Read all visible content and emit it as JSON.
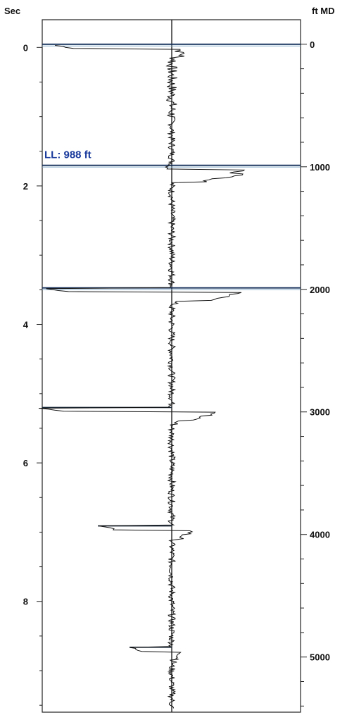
{
  "chart_data": {
    "type": "line",
    "left_axis": {
      "title": "Sec",
      "range": [
        -0.4,
        9.6
      ],
      "ticks": [
        0,
        2,
        4,
        6,
        8
      ],
      "minor_step": 0.5
    },
    "right_axis": {
      "title": "ft MD",
      "range": [
        -200,
        5450
      ],
      "ticks": [
        0,
        1000,
        2000,
        3000,
        4000,
        5000
      ],
      "minor_step": 200
    },
    "event_lines_ft": [
      0,
      988,
      1988,
      2964,
      3930,
      4920
    ],
    "annotation": {
      "text": "LL: 988 ft",
      "depth_ft": 988
    },
    "trace": {
      "center_ft": 0,
      "events": [
        {
          "ft": 0,
          "amplitudes": [
            -180,
            20,
            30,
            10
          ]
        },
        {
          "ft": 988,
          "amplitudes": [
            -5,
            160,
            190,
            160
          ]
        },
        {
          "ft": 1988,
          "amplitudes": [
            -190,
            145,
            140,
            12
          ]
        },
        {
          "ft": 2964,
          "amplitudes": [
            -195,
            100,
            75,
            20
          ]
        },
        {
          "ft": 3930,
          "amplitudes": [
            -105,
            45,
            30,
            6
          ]
        },
        {
          "ft": 4920,
          "amplitudes": [
            -60,
            22,
            18,
            8
          ]
        }
      ]
    },
    "grid": false
  }
}
